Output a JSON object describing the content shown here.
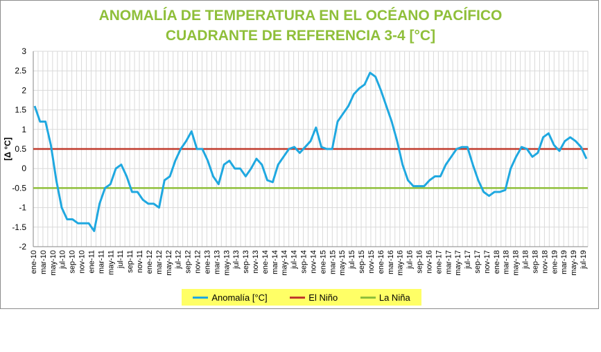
{
  "chart_data": {
    "type": "line",
    "title": "ANOMALÍA DE TEMPERATURA EN EL OCÉANO PACÍFICO",
    "subtitle": "CUADRANTE DE REFERENCIA 3-4 [°C]",
    "ylabel": "[Δ °C]",
    "xlabel": "",
    "ylim": [
      -2,
      3
    ],
    "yticks": [
      "3",
      "2.5",
      "2",
      "1.5",
      "1",
      "0.5",
      "0",
      "-0.5",
      "-1",
      "-1.5",
      "-2"
    ],
    "ytick_values": [
      3,
      2.5,
      2,
      1.5,
      1,
      0.5,
      0,
      -0.5,
      -1,
      -1.5,
      -2
    ],
    "grid": true,
    "legend_position": "bottom",
    "x_tick_labels": [
      "ene-10",
      "mar-10",
      "may-10",
      "jul-10",
      "sep-10",
      "nov-10",
      "ene-11",
      "mar-11",
      "may-11",
      "jul-11",
      "sep-11",
      "nov-11",
      "ene-12",
      "mar-12",
      "may-12",
      "jul-12",
      "sep-12",
      "nov-12",
      "ene-13",
      "mar-13",
      "may-13",
      "jul-13",
      "sep-13",
      "nov-13",
      "ene-14",
      "mar-14",
      "may-14",
      "jul-14",
      "sep-14",
      "nov-14",
      "ene-15",
      "mar-15",
      "may-15",
      "jul-15",
      "sep-15",
      "nov-15",
      "ene-16",
      "mar-16",
      "may-16",
      "jul-16",
      "sep-16",
      "nov-16",
      "ene-17",
      "mar-17",
      "may-17",
      "jul-17",
      "sep-17",
      "nov-17",
      "ene-18",
      "mar-18",
      "may-18",
      "jul-18",
      "sep-18",
      "nov-18",
      "ene-19",
      "mar-19",
      "may-19",
      "jul-19"
    ],
    "series": [
      {
        "name": "Anomalía [°C]",
        "color": "#1fa8e0",
        "values": [
          1.6,
          1.2,
          1.2,
          0.6,
          -0.3,
          -1.0,
          -1.3,
          -1.3,
          -1.4,
          -1.4,
          -1.4,
          -1.6,
          -0.9,
          -0.5,
          -0.4,
          0.0,
          0.1,
          -0.2,
          -0.6,
          -0.6,
          -0.8,
          -0.9,
          -0.9,
          -1.0,
          -0.3,
          -0.2,
          0.2,
          0.5,
          0.7,
          0.95,
          0.5,
          0.5,
          0.2,
          -0.2,
          -0.4,
          0.1,
          0.2,
          0.0,
          0.0,
          -0.2,
          0.0,
          0.25,
          0.1,
          -0.3,
          -0.35,
          0.1,
          0.3,
          0.5,
          0.55,
          0.4,
          0.55,
          0.7,
          1.05,
          0.55,
          0.5,
          0.5,
          1.2,
          1.4,
          1.6,
          1.9,
          2.05,
          2.15,
          2.45,
          2.35,
          2.0,
          1.6,
          1.2,
          0.7,
          0.1,
          -0.3,
          -0.45,
          -0.45,
          -0.45,
          -0.3,
          -0.2,
          -0.2,
          0.1,
          0.3,
          0.5,
          0.55,
          0.55,
          0.1,
          -0.3,
          -0.6,
          -0.7,
          -0.6,
          -0.6,
          -0.55,
          0.0,
          0.3,
          0.55,
          0.5,
          0.3,
          0.4,
          0.8,
          0.9,
          0.6,
          0.45,
          0.7,
          0.8,
          0.7,
          0.55,
          0.25
        ]
      },
      {
        "name": "El Niño",
        "color": "#c0392b",
        "value": 0.5
      },
      {
        "name": "La Niña",
        "color": "#8fbf3a",
        "value": -0.5
      }
    ]
  }
}
